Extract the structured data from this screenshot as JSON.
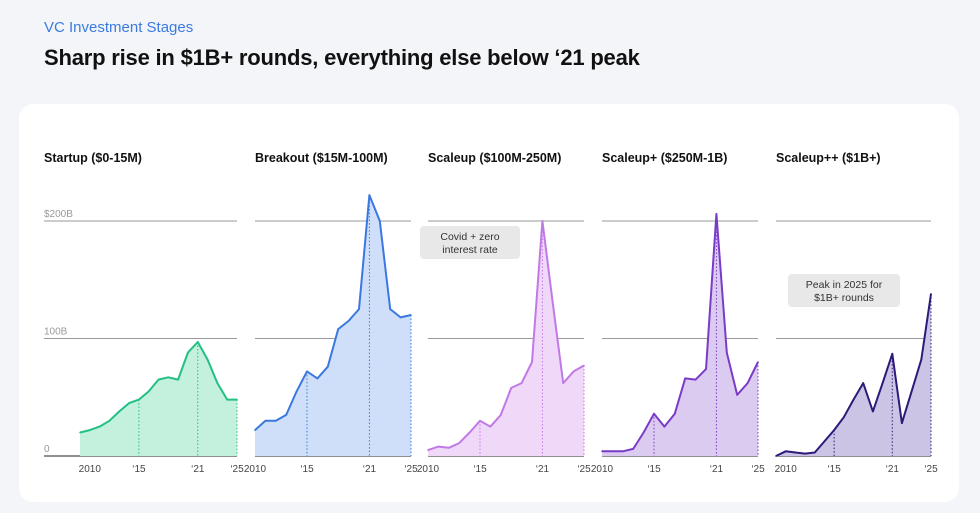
{
  "header": {
    "kicker": "VC Investment Stages",
    "title": "Sharp rise in $1B+ rounds, everything else below ‘21 peak"
  },
  "chart_data": {
    "type": "area",
    "x": [
      2009,
      2010,
      2011,
      2012,
      2013,
      2014,
      2015,
      2016,
      2017,
      2018,
      2019,
      2020,
      2021,
      2022,
      2023,
      2024,
      2025
    ],
    "ylim": [
      0,
      200
    ],
    "y_ticks": [
      {
        "value": 200,
        "label": "$200B"
      },
      {
        "value": 100,
        "label": "100B"
      },
      {
        "value": 0,
        "label": "0"
      }
    ],
    "x_ticks": [
      {
        "year": 2010,
        "label": "2010"
      },
      {
        "year": 2015,
        "label": "‘15"
      },
      {
        "year": 2021,
        "label": "‘21"
      },
      {
        "year": 2025,
        "label": "‘25"
      }
    ],
    "series": [
      {
        "name": "Startup ($0-15M)",
        "color": "#22c083",
        "fill": "#c4f0de",
        "values": [
          20,
          22,
          25,
          30,
          38,
          45,
          48,
          55,
          65,
          67,
          65,
          88,
          97,
          82,
          62,
          48,
          48
        ],
        "x": [
          2009,
          2010,
          2011,
          2012,
          2013,
          2014,
          2015,
          2016,
          2017,
          2018,
          2019,
          2020,
          2021,
          2022,
          2023,
          2024,
          2025
        ],
        "markers": [
          2015,
          2021,
          2025
        ],
        "x_tick_years": [
          2010,
          2015,
          2021,
          2025
        ]
      },
      {
        "name": "Breakout ($15M-100M)",
        "color": "#3a78e0",
        "fill": "#cfdffa",
        "values": [
          22,
          30,
          30,
          35,
          55,
          72,
          66,
          76,
          108,
          115,
          125,
          222,
          200,
          125,
          118,
          120
        ],
        "x": [
          2010,
          2011,
          2012,
          2013,
          2014,
          2015,
          2016,
          2017,
          2018,
          2019,
          2020,
          2021,
          2022,
          2023,
          2024,
          2025
        ],
        "markers": [
          2015,
          2021,
          2025
        ],
        "x_tick_years": [
          2010,
          2015,
          2021,
          2025
        ]
      },
      {
        "name": "Scaleup ($100M-250M)",
        "color": "#c07ae6",
        "fill": "#f0d8f9",
        "values": [
          5,
          8,
          7,
          11,
          20,
          30,
          25,
          35,
          58,
          62,
          80,
          200,
          130,
          62,
          72,
          77
        ],
        "x": [
          2010,
          2011,
          2012,
          2013,
          2014,
          2015,
          2016,
          2017,
          2018,
          2019,
          2020,
          2021,
          2022,
          2023,
          2024,
          2025
        ],
        "markers": [
          2015,
          2021,
          2025
        ],
        "x_tick_years": [
          2010,
          2015,
          2021,
          2025
        ]
      },
      {
        "name": "Scaleup+ ($250M-1B)",
        "color": "#7a3bc8",
        "fill": "#dccbf0",
        "values": [
          4,
          4,
          4,
          6,
          20,
          36,
          25,
          36,
          66,
          65,
          74,
          206,
          88,
          52,
          62,
          80
        ],
        "x": [
          2010,
          2011,
          2012,
          2013,
          2014,
          2015,
          2016,
          2017,
          2018,
          2019,
          2020,
          2021,
          2022,
          2023,
          2024,
          2025
        ],
        "markers": [
          2015,
          2021,
          2025
        ],
        "x_tick_years": [
          2010,
          2015,
          2021,
          2025
        ]
      },
      {
        "name": "Scaleup++ ($1B+)",
        "color": "#2d1a78",
        "fill": "#ccc4e4",
        "values": [
          0,
          4,
          3,
          2,
          3,
          22,
          33,
          48,
          62,
          38,
          62,
          87,
          28,
          55,
          82,
          138
        ],
        "x": [
          2009,
          2010,
          2011,
          2012,
          2013,
          2015,
          2016,
          2017,
          2018,
          2019,
          2020,
          2021,
          2022,
          2023,
          2024,
          2025
        ],
        "markers": [
          2015,
          2021,
          2025
        ],
        "x_tick_years": [
          2010,
          2015,
          2021,
          2025
        ]
      }
    ],
    "annotations": [
      {
        "panel": 2,
        "lines": [
          "Covid + zero",
          "interest rate"
        ]
      },
      {
        "panel": 4,
        "lines": [
          "Peak in 2025 for",
          "$1B+ rounds"
        ]
      }
    ]
  }
}
